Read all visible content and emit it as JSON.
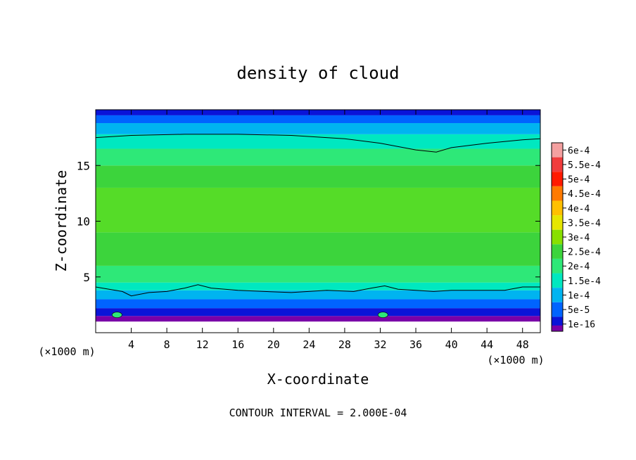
{
  "chart_data": {
    "type": "heatmap",
    "title": "density of cloud",
    "xlabel": "X-coordinate",
    "ylabel": "Z-coordinate",
    "x_unit": "(×1000 m)",
    "xlim": [
      0,
      50
    ],
    "ylim": [
      0,
      20
    ],
    "x_ticks": [
      4,
      8,
      12,
      16,
      20,
      24,
      28,
      32,
      36,
      40,
      44,
      48
    ],
    "y_ticks": [
      5,
      10,
      15
    ],
    "footer": "CONTOUR INTERVAL = 2.000E-04",
    "colorbar": {
      "levels": [
        {
          "label": "6e-4",
          "color": "#f4a0a0"
        },
        {
          "label": "5.5e-4",
          "color": "#f03c3c"
        },
        {
          "label": "5e-4",
          "color": "#ff1a00"
        },
        {
          "label": "4.5e-4",
          "color": "#ff7a00"
        },
        {
          "label": "4e-4",
          "color": "#ffc000"
        },
        {
          "label": "3.5e-4",
          "color": "#e6e600"
        },
        {
          "label": "3e-4",
          "color": "#88e000"
        },
        {
          "label": "2.5e-4",
          "color": "#3cd43c"
        },
        {
          "label": "2e-4",
          "color": "#2ee878"
        },
        {
          "label": "1.5e-4",
          "color": "#00e8c0"
        },
        {
          "label": "1e-4",
          "color": "#00b4f0"
        },
        {
          "label": "5e-5",
          "color": "#0064ff"
        },
        {
          "label": "1e-16",
          "color": "#0a14d8"
        }
      ],
      "bottom_color": "#7a00a8"
    },
    "contour_lines": [
      {
        "level": "2e-4",
        "points": [
          [
            0,
            17.5
          ],
          [
            4,
            17.7
          ],
          [
            10,
            17.8
          ],
          [
            16,
            17.8
          ],
          [
            22,
            17.7
          ],
          [
            28,
            17.4
          ],
          [
            32,
            17.0
          ],
          [
            36,
            16.4
          ],
          [
            38.3,
            16.2
          ],
          [
            40,
            16.6
          ],
          [
            44,
            17.0
          ],
          [
            48,
            17.3
          ],
          [
            50,
            17.4
          ]
        ]
      },
      {
        "level": "2e-4",
        "points": [
          [
            0,
            4.1
          ],
          [
            1.5,
            3.9
          ],
          [
            3,
            3.7
          ],
          [
            4,
            3.3
          ],
          [
            6,
            3.6
          ],
          [
            8,
            3.7
          ],
          [
            10,
            4.0
          ],
          [
            11.5,
            4.3
          ],
          [
            13,
            4.0
          ],
          [
            16,
            3.8
          ],
          [
            19,
            3.7
          ],
          [
            22,
            3.6
          ],
          [
            26,
            3.8
          ],
          [
            29,
            3.7
          ],
          [
            31,
            4.0
          ],
          [
            32.5,
            4.2
          ],
          [
            34,
            3.9
          ],
          [
            36,
            3.8
          ],
          [
            38,
            3.7
          ],
          [
            40,
            3.8
          ],
          [
            43,
            3.8
          ],
          [
            46,
            3.8
          ],
          [
            48,
            4.1
          ],
          [
            50,
            4.1
          ]
        ]
      }
    ],
    "field_bands": [
      {
        "z": [
          0.0,
          1.0
        ],
        "color": "#ffffff"
      },
      {
        "z": [
          1.0,
          1.5
        ],
        "color": "#7a00a8"
      },
      {
        "z": [
          1.5,
          2.2
        ],
        "color": "#0a14d8"
      },
      {
        "z": [
          2.2,
          3.0
        ],
        "color": "#0064ff"
      },
      {
        "z": [
          3.0,
          3.8
        ],
        "color": "#00b4f0"
      },
      {
        "z": [
          3.8,
          4.5
        ],
        "color": "#00e8c0"
      },
      {
        "z": [
          4.5,
          6.0
        ],
        "color": "#2ee878"
      },
      {
        "z": [
          6.0,
          9.0
        ],
        "color": "#3cd43c"
      },
      {
        "z": [
          9.0,
          13.0
        ],
        "color": "#55dc28"
      },
      {
        "z": [
          13.0,
          15.0
        ],
        "color": "#3cd43c"
      },
      {
        "z": [
          15.0,
          16.5
        ],
        "color": "#2ee878"
      },
      {
        "z": [
          16.5,
          17.8
        ],
        "color": "#00e8c0"
      },
      {
        "z": [
          17.8,
          18.8
        ],
        "color": "#00b4f0"
      },
      {
        "z": [
          18.8,
          19.5
        ],
        "color": "#0064ff"
      },
      {
        "z": [
          19.5,
          20.0
        ],
        "color": "#0a14d8"
      }
    ]
  }
}
